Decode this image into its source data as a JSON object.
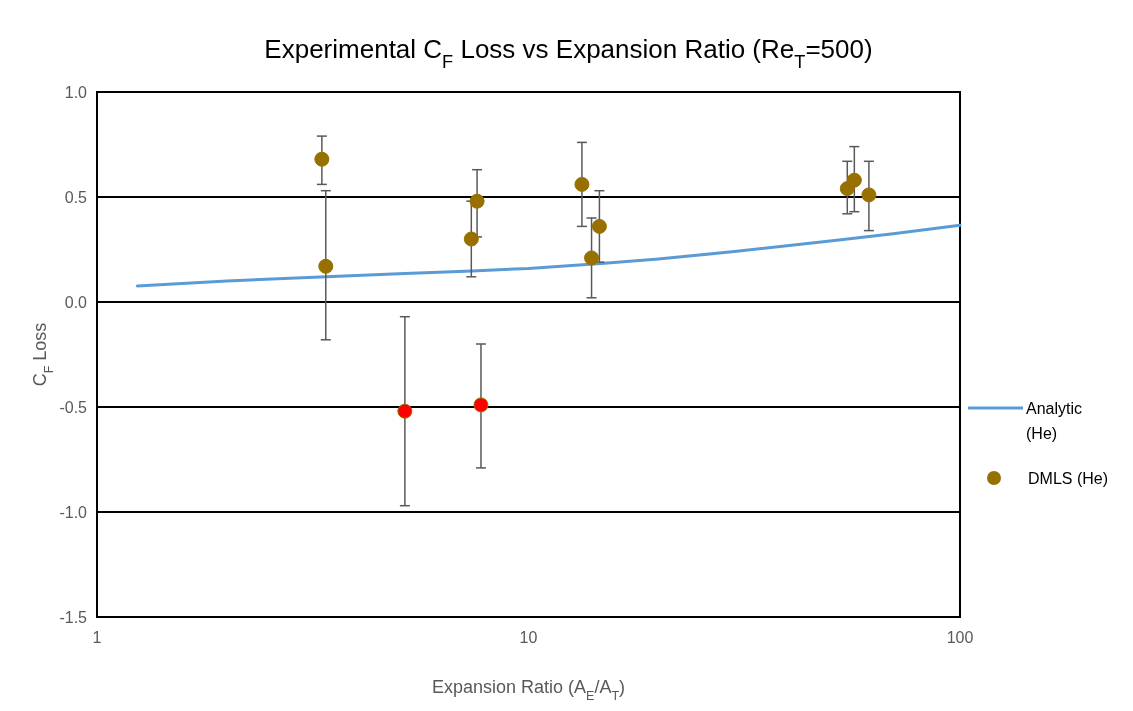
{
  "chart_data": {
    "type": "scatter",
    "title": "Experimental C$_{F}$ Loss vs Expansion Ratio (Re$_{T}$=500)",
    "xlabel": "Expansion Ratio (A$_{E}$/A$_{T}$)",
    "ylabel": "C$_{F}$ Loss",
    "log": "x",
    "xlim": [
      1,
      100
    ],
    "xticks": [
      1,
      10,
      100
    ],
    "ylim": [
      -1.5,
      1
    ],
    "yticks": [
      {
        "value": -1.5,
        "label": "-1.5"
      },
      {
        "value": -1,
        "label": "-1.0"
      },
      {
        "value": -0.5,
        "label": "-0.5"
      },
      {
        "value": 0,
        "label": "0.0"
      },
      {
        "value": 0.5,
        "label": "0.5"
      },
      {
        "value": 1,
        "label": "1.0"
      }
    ],
    "grid": "y",
    "legend": "right",
    "marker": "circle",
    "series": [
      {
        "name": "Analytic (He)",
        "type": "line",
        "color": "#5b9bd5",
        "marker": "none",
        "x": [
          1.24,
          2,
          3.4,
          5,
          7.4,
          10,
          15,
          20,
          30,
          50,
          70,
          100
        ],
        "values": [
          0.076,
          0.1,
          0.12,
          0.135,
          0.148,
          0.16,
          0.185,
          0.205,
          0.24,
          0.29,
          0.325,
          0.365
        ]
      },
      {
        "name": "DMLS (He)",
        "color": "#977000",
        "x": [
          3.32,
          3.39,
          5.17,
          7.76,
          7.37,
          7.6,
          13.3,
          14.0,
          14.6,
          54.8,
          56.9,
          61.5
        ],
        "values": [
          0.68,
          0.17,
          -0.52,
          -0.49,
          0.3,
          0.48,
          0.56,
          0.21,
          0.36,
          0.54,
          0.58,
          0.51
        ],
        "colors": [
          "#977000",
          "#977000",
          "#ff0000",
          "#ff0000",
          "#977000",
          "#977000",
          "#977000",
          "#977000",
          "#977000",
          "#977000",
          "#977000",
          "#977000"
        ],
        "errors": [
          [
            0.56,
            0.79
          ],
          [
            -0.18,
            0.53
          ],
          [
            -0.97,
            -0.07
          ],
          [
            -0.79,
            -0.2
          ],
          [
            0.12,
            0.48
          ],
          [
            0.31,
            0.63
          ],
          [
            0.36,
            0.76
          ],
          [
            0.02,
            0.4
          ],
          [
            0.19,
            0.53
          ],
          [
            0.42,
            0.67
          ],
          [
            0.43,
            0.74
          ],
          [
            0.34,
            0.67
          ]
        ]
      }
    ]
  }
}
